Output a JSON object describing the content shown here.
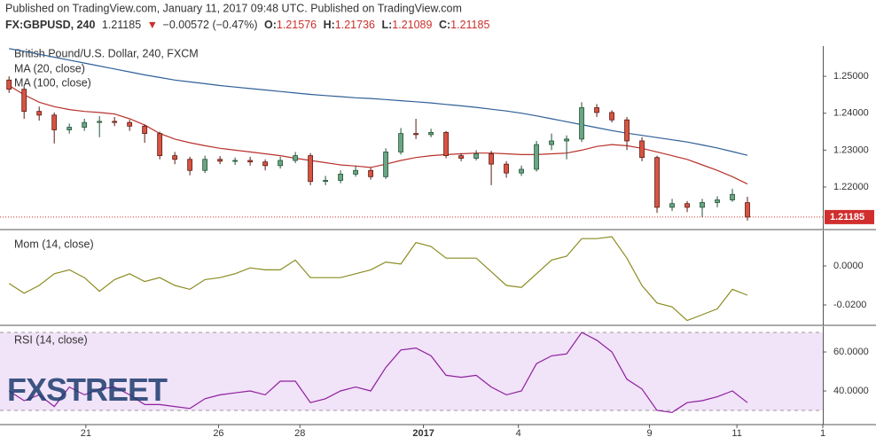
{
  "header": {
    "published": "Published on TradingView.com, January 11, 2017 09:48 UTC. Published on TradingView.com",
    "symbol": "FX:GBPUSD, 240",
    "price": "1.21185",
    "arrow": "▼",
    "change": "−0.00572 (−0.47%)",
    "ohlc": [
      {
        "k": "O:",
        "v": "1.21576"
      },
      {
        "k": "H:",
        "v": "1.21736"
      },
      {
        "k": "L:",
        "v": "1.21089"
      },
      {
        "k": "C:",
        "v": "1.21185"
      }
    ]
  },
  "watermark": {
    "a": "FX",
    "b": "STREET"
  },
  "chart_data": [
    {
      "type": "candlestick",
      "title": "British Pound/U.S. Dollar, 240, FXCM",
      "up_color": "#6ba583",
      "down_color": "#d75442",
      "price_label": {
        "value": 1.21185,
        "label": "1.21185"
      },
      "xlim": [
        -0.6,
        54
      ],
      "xticks": [
        {
          "value": 5.1,
          "label": "21"
        },
        {
          "value": 13.9,
          "label": "26"
        },
        {
          "value": 19.3,
          "label": "28"
        },
        {
          "value": 27.5,
          "label": "2017"
        },
        {
          "value": 33.8,
          "label": "4"
        },
        {
          "value": 42.5,
          "label": "9"
        },
        {
          "value": 48.3,
          "label": "11"
        },
        {
          "value": 54,
          "label": "1"
        }
      ],
      "ylim": [
        1.2087,
        1.2582
      ],
      "yticks": [
        {
          "value": 1.25,
          "label": "1.25000"
        },
        {
          "value": 1.24,
          "label": "1.24000"
        },
        {
          "value": 1.23,
          "label": "1.23000"
        },
        {
          "value": 1.22,
          "label": "1.22000"
        }
      ],
      "open": [
        1.249,
        1.2465,
        1.2405,
        1.2395,
        1.2355,
        1.2362,
        1.2375,
        1.2378,
        1.2375,
        1.2365,
        1.2345,
        1.2285,
        1.2275,
        1.2245,
        1.2275,
        1.227,
        1.2272,
        1.2268,
        1.2258,
        1.2272,
        1.2285,
        1.2215,
        1.2218,
        1.2235,
        1.2245,
        1.2228,
        1.2295,
        1.2345,
        1.2342,
        1.2348,
        1.2285,
        1.2278,
        1.229,
        1.2262,
        1.2238,
        1.2248,
        1.2315,
        1.2325,
        1.233,
        1.2415,
        1.2402,
        1.2382,
        1.2325,
        1.228,
        1.2145,
        1.2155,
        1.2145,
        1.2158,
        1.2165,
        1.21576
      ],
      "high": [
        1.25,
        1.2472,
        1.2418,
        1.2402,
        1.2372,
        1.2385,
        1.2392,
        1.239,
        1.2382,
        1.237,
        1.235,
        1.2295,
        1.2282,
        1.2285,
        1.2284,
        1.228,
        1.2282,
        1.2275,
        1.2282,
        1.2295,
        1.2292,
        1.223,
        1.2245,
        1.2258,
        1.2252,
        1.2305,
        1.236,
        1.2385,
        1.2358,
        1.2352,
        1.2292,
        1.23,
        1.2298,
        1.227,
        1.2258,
        1.2325,
        1.2345,
        1.234,
        1.243,
        1.2425,
        1.2408,
        1.239,
        1.2335,
        1.2285,
        1.2168,
        1.2162,
        1.2168,
        1.2175,
        1.2195,
        1.21736
      ],
      "low": [
        1.2455,
        1.2385,
        1.238,
        1.2318,
        1.2345,
        1.2352,
        1.2335,
        1.2365,
        1.2352,
        1.232,
        1.2275,
        1.2262,
        1.2232,
        1.2238,
        1.2262,
        1.226,
        1.2258,
        1.2245,
        1.225,
        1.2265,
        1.2205,
        1.2205,
        1.221,
        1.2228,
        1.222,
        1.2222,
        1.2288,
        1.233,
        1.2335,
        1.2278,
        1.227,
        1.2272,
        1.2205,
        1.2225,
        1.223,
        1.2242,
        1.23,
        1.2275,
        1.2322,
        1.239,
        1.2375,
        1.23,
        1.227,
        1.213,
        1.2135,
        1.2132,
        1.2118,
        1.2145,
        1.216,
        1.21089
      ],
      "close": [
        1.2465,
        1.2405,
        1.2395,
        1.2355,
        1.2362,
        1.2375,
        1.2378,
        1.2375,
        1.2365,
        1.2345,
        1.2285,
        1.2275,
        1.2245,
        1.2275,
        1.227,
        1.2272,
        1.2268,
        1.2258,
        1.2272,
        1.2285,
        1.2215,
        1.2218,
        1.2235,
        1.2245,
        1.2228,
        1.2295,
        1.2345,
        1.2342,
        1.2348,
        1.2285,
        1.2278,
        1.229,
        1.2262,
        1.2238,
        1.2248,
        1.2315,
        1.2325,
        1.233,
        1.2415,
        1.2402,
        1.2382,
        1.2325,
        1.228,
        1.2145,
        1.2155,
        1.2145,
        1.2158,
        1.2165,
        1.218,
        1.21185
      ],
      "series": [
        {
          "name": "MA (20, close)",
          "color": "#b8322b",
          "values": [
            1.2475,
            1.245,
            1.243,
            1.2418,
            1.241,
            1.2405,
            1.2402,
            1.2398,
            1.2385,
            1.2368,
            1.2345,
            1.233,
            1.232,
            1.2312,
            1.2305,
            1.23,
            1.2295,
            1.229,
            1.2285,
            1.2278,
            1.2272,
            1.2266,
            1.226,
            1.2257,
            1.2253,
            1.2262,
            1.2272,
            1.228,
            1.2285,
            1.2288,
            1.229,
            1.2292,
            1.2292,
            1.229,
            1.2288,
            1.2288,
            1.229,
            1.2292,
            1.23,
            1.231,
            1.2315,
            1.2312,
            1.2305,
            1.2295,
            1.2285,
            1.2275,
            1.226,
            1.2245,
            1.2228,
            1.2208
          ]
        },
        {
          "name": "MA (100, close)",
          "color": "#2f5f97",
          "values": [
            1.2575,
            1.2568,
            1.256,
            1.2552,
            1.2544,
            1.2536,
            1.2528,
            1.252,
            1.2512,
            1.2504,
            1.2497,
            1.249,
            1.2485,
            1.248,
            1.2475,
            1.2471,
            1.2467,
            1.2463,
            1.2459,
            1.2455,
            1.2451,
            1.2448,
            1.2445,
            1.2442,
            1.244,
            1.2437,
            1.2434,
            1.2431,
            1.2428,
            1.2424,
            1.242,
            1.2416,
            1.2411,
            1.2406,
            1.24,
            1.2393,
            1.2385,
            1.2377,
            1.2369,
            1.2361,
            1.2353,
            1.2346,
            1.234,
            1.2334,
            1.2328,
            1.2322,
            1.2314,
            1.2306,
            1.2296,
            1.2286
          ]
        }
      ]
    },
    {
      "type": "line",
      "ylim": [
        -0.03,
        0.0182
      ],
      "yticks": [
        {
          "value": 0,
          "label": "0.0000"
        },
        {
          "value": -0.02,
          "label": "-0.0200"
        }
      ],
      "series": [
        {
          "name": "Mom (14, close)",
          "color": "#8c8c23",
          "values": [
            -0.009,
            -0.014,
            -0.01,
            -0.004,
            -0.002,
            -0.006,
            -0.013,
            -0.007,
            -0.004,
            -0.008,
            -0.006,
            -0.01,
            -0.012,
            -0.007,
            -0.006,
            -0.004,
            -0.001,
            -0.002,
            -0.002,
            0.003,
            -0.006,
            -0.006,
            -0.006,
            -0.004,
            -0.002,
            0.002,
            0.001,
            0.012,
            0.01,
            0.004,
            0.004,
            0.004,
            -0.003,
            -0.01,
            -0.011,
            -0.004,
            0.003,
            0.005,
            0.014,
            0.014,
            0.015,
            0.004,
            -0.01,
            -0.019,
            -0.021,
            -0.028,
            -0.025,
            -0.022,
            -0.012,
            -0.015
          ]
        }
      ]
    },
    {
      "type": "line",
      "ylim": [
        23.2,
        73.2
      ],
      "yticks": [
        {
          "value": 60,
          "label": "60.0000"
        },
        {
          "value": 40,
          "label": "40.0000"
        }
      ],
      "band": [
        30,
        70
      ],
      "band_color": "#f1e3f8",
      "series": [
        {
          "name": "RSI (14, close)",
          "color": "#8e1f9e",
          "values": [
            40,
            35,
            38,
            32,
            42,
            38,
            41,
            42,
            38,
            33,
            33,
            32,
            31,
            36,
            38,
            39,
            40,
            38,
            45,
            45,
            34,
            36,
            40,
            42,
            40,
            52,
            61,
            62,
            58,
            48,
            47,
            48,
            42,
            38,
            40,
            54,
            58,
            59,
            70,
            66,
            60,
            46,
            41,
            30,
            29,
            34,
            35,
            37,
            40,
            34
          ]
        }
      ]
    }
  ]
}
